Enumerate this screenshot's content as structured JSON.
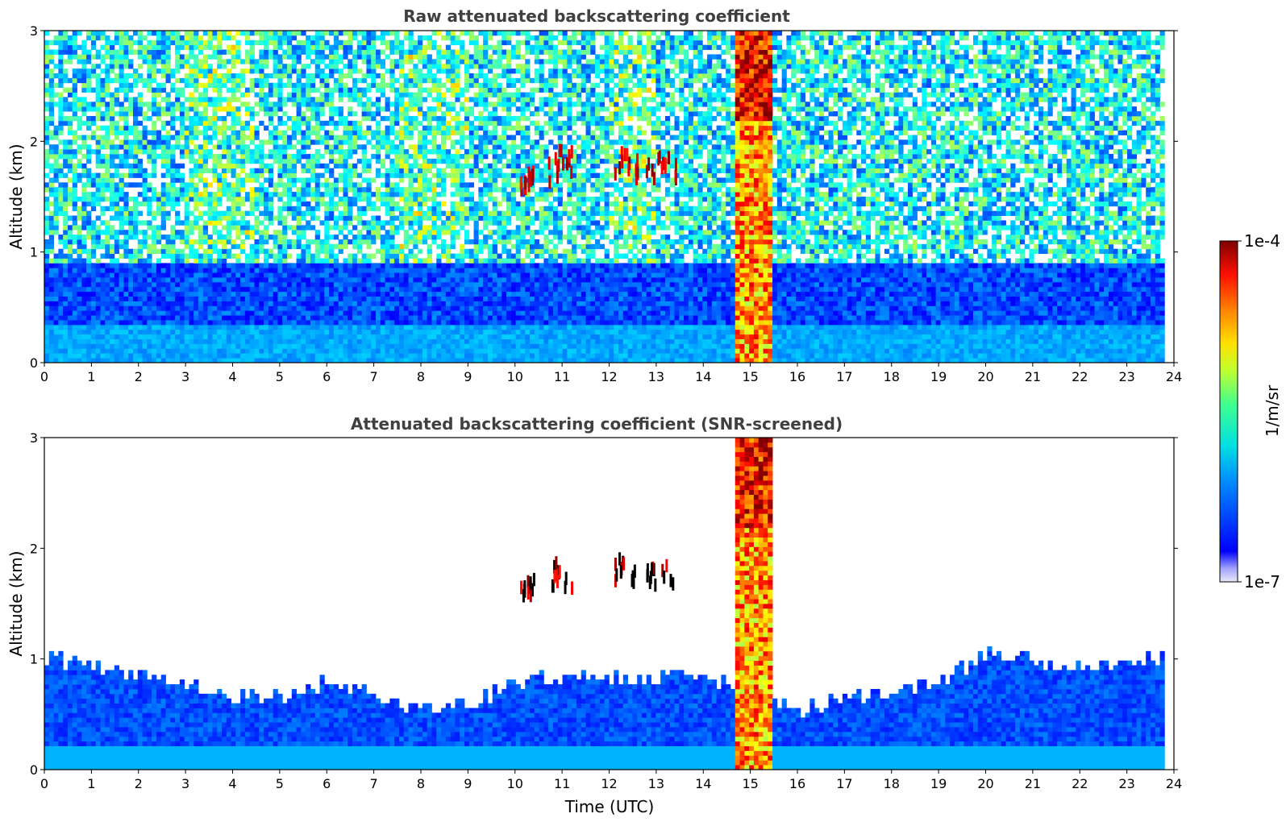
{
  "chart_data": [
    {
      "type": "heatmap",
      "title": "Raw attenuated backscattering coefficient",
      "xlabel": "",
      "ylabel": "Altitude (km)",
      "xlim": [
        0,
        24
      ],
      "ylim": [
        0,
        3
      ],
      "xticks": [
        "0",
        "1",
        "2",
        "3",
        "4",
        "5",
        "6",
        "7",
        "8",
        "9",
        "10",
        "11",
        "12",
        "13",
        "14",
        "15",
        "16",
        "17",
        "18",
        "19",
        "20",
        "21",
        "22",
        "23",
        "24"
      ],
      "yticks": [
        "0",
        "1",
        "2",
        "3"
      ],
      "data_end_hour": 23.8,
      "features": [
        {
          "desc": "boundary layer aerosol",
          "x": [
            0,
            23.8
          ],
          "y": [
            0,
            0.8
          ],
          "log10_value": -5.8
        },
        {
          "desc": "noisy free troposphere",
          "x": [
            0,
            23.8
          ],
          "y": [
            0.8,
            3
          ],
          "log10_value": -5.3
        },
        {
          "desc": "cloud/precip column",
          "x": [
            14.7,
            15.4
          ],
          "y": [
            0,
            3
          ],
          "log10_value": -4.3
        },
        {
          "desc": "mid-level cloud",
          "x": [
            10.1,
            11.2
          ],
          "y": [
            1.5,
            2.0
          ],
          "log10_value": -4.1
        },
        {
          "desc": "mid-level cloud",
          "x": [
            12.1,
            13.4
          ],
          "y": [
            1.6,
            2.0
          ],
          "log10_value": -4.1
        }
      ]
    },
    {
      "type": "heatmap",
      "title": "Attenuated backscattering coefficient (SNR-screened)",
      "xlabel": "Time (UTC)",
      "ylabel": "Altitude (km)",
      "xlim": [
        0,
        24
      ],
      "ylim": [
        0,
        3
      ],
      "xticks": [
        "0",
        "1",
        "2",
        "3",
        "4",
        "5",
        "6",
        "7",
        "8",
        "9",
        "10",
        "11",
        "12",
        "13",
        "14",
        "15",
        "16",
        "17",
        "18",
        "19",
        "20",
        "21",
        "22",
        "23",
        "24"
      ],
      "yticks": [
        "0",
        "1",
        "2",
        "3"
      ],
      "data_end_hour": 23.8,
      "boundary_layer_top_km": [
        [
          0,
          1.0
        ],
        [
          1,
          0.95
        ],
        [
          2,
          0.85
        ],
        [
          3,
          0.8
        ],
        [
          4,
          0.65
        ],
        [
          5,
          0.65
        ],
        [
          6,
          0.8
        ],
        [
          7,
          0.7
        ],
        [
          8,
          0.55
        ],
        [
          9,
          0.6
        ],
        [
          10,
          0.8
        ],
        [
          11,
          0.85
        ],
        [
          12,
          0.85
        ],
        [
          13,
          0.85
        ],
        [
          14,
          0.85
        ],
        [
          14.7,
          0.75
        ],
        [
          15.6,
          0.6
        ],
        [
          16,
          0.55
        ],
        [
          17,
          0.65
        ],
        [
          18,
          0.7
        ],
        [
          19,
          0.8
        ],
        [
          20,
          1.05
        ],
        [
          21,
          1.0
        ],
        [
          22,
          0.9
        ],
        [
          23,
          1.0
        ],
        [
          23.8,
          1.0
        ]
      ]
    }
  ],
  "colorbar": {
    "min_label": "1e-7",
    "max_label": "1e-4",
    "label": "1/m/sr",
    "colormap": "jet"
  }
}
